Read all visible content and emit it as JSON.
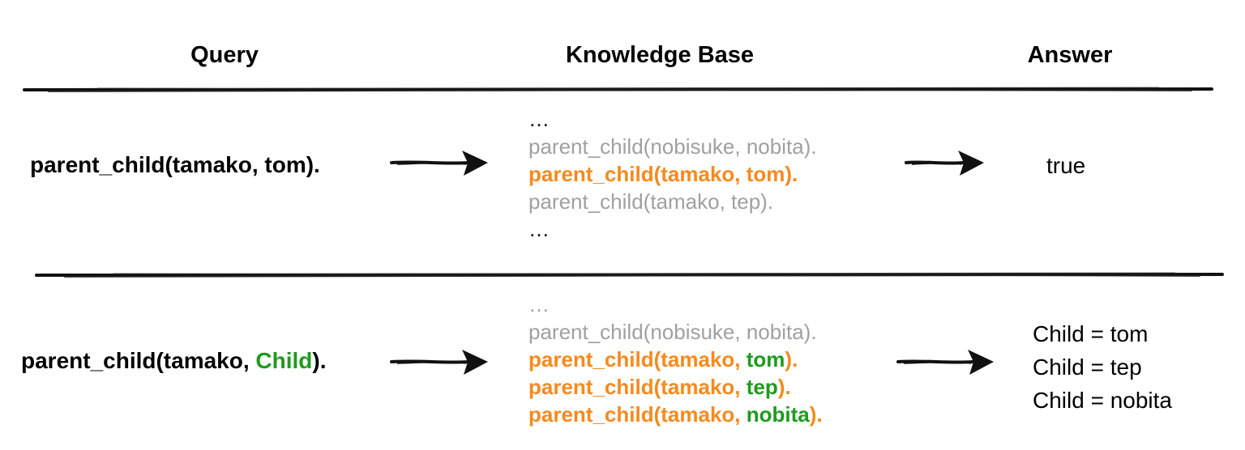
{
  "headers": {
    "query": "Query",
    "knowledge_base": "Knowledge Base",
    "answer": "Answer"
  },
  "row1": {
    "query": "parent_child(tamako, tom).",
    "kb": {
      "ellipsis_top": "…",
      "line1": "parent_child(nobisuke, nobita).",
      "line2": "parent_child(tamako, tom).",
      "line3": "parent_child(tamako, tep).",
      "ellipsis_bottom": "…"
    },
    "answer": "true"
  },
  "row2": {
    "query_prefix": "parent_child(tamako, ",
    "query_var": "Child",
    "query_suffix": ").",
    "kb": {
      "ellipsis_top": "…",
      "line1": "parent_child(nobisuke, nobita).",
      "match1_prefix": "parent_child(tamako, ",
      "match1_value": "tom",
      "match1_suffix": ").",
      "match2_prefix": "parent_child(tamako, ",
      "match2_value": "tep",
      "match2_suffix": ").",
      "match3_prefix": "parent_child(tamako, ",
      "match3_value": "nobita",
      "match3_suffix": ")."
    },
    "answers": [
      "Child = tom",
      "Child = tep",
      "Child = nobita"
    ]
  },
  "colors": {
    "highlight": "#f58a1f",
    "variable": "#1f9a1f",
    "muted": "#a0a0a0",
    "text": "#000000"
  }
}
